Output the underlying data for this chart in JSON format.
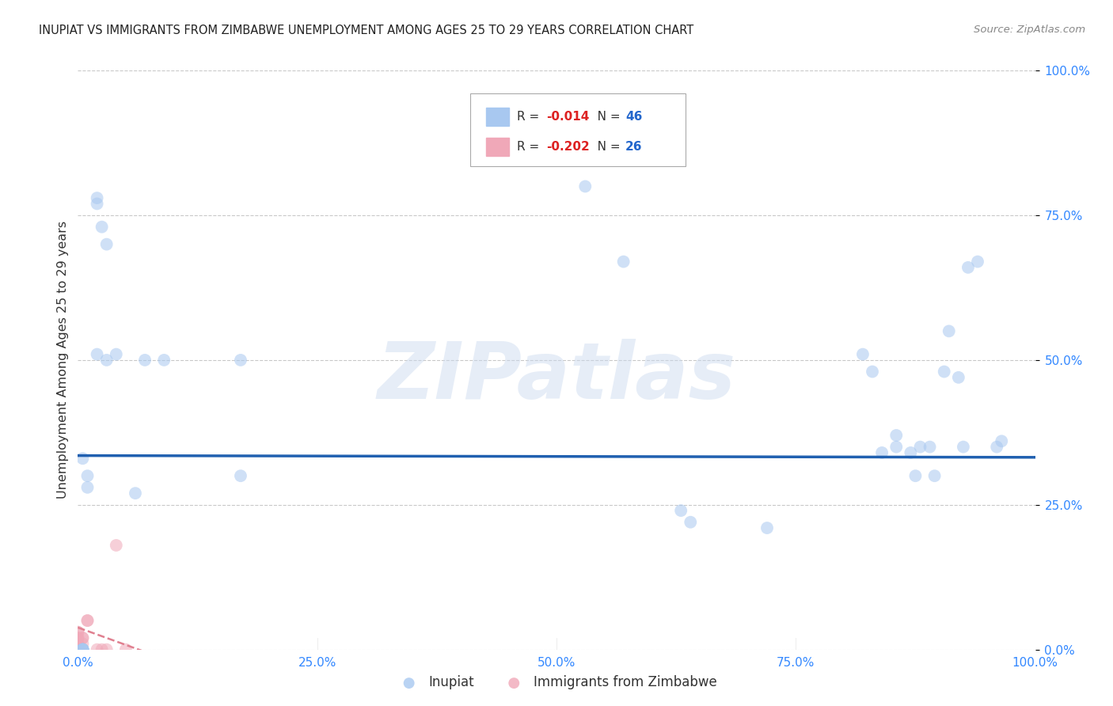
{
  "title": "INUPIAT VS IMMIGRANTS FROM ZIMBABWE UNEMPLOYMENT AMONG AGES 25 TO 29 YEARS CORRELATION CHART",
  "source": "Source: ZipAtlas.com",
  "ylabel": "Unemployment Among Ages 25 to 29 years",
  "xlim": [
    0,
    1
  ],
  "ylim": [
    0,
    1
  ],
  "xticks": [
    0.0,
    0.25,
    0.5,
    0.75,
    1.0
  ],
  "yticks": [
    0.0,
    0.25,
    0.5,
    0.75,
    1.0
  ],
  "xtick_labels": [
    "0.0%",
    "25.0%",
    "50.0%",
    "75.0%",
    "100.0%"
  ],
  "ytick_labels": [
    "0.0%",
    "25.0%",
    "50.0%",
    "75.0%",
    "100.0%"
  ],
  "inupiat_color": "#a8c8f0",
  "zimbabwe_color": "#f0a8b8",
  "trendline_inupiat_color": "#2060b0",
  "trendline_zimbabwe_color": "#e08090",
  "legend_R_color": "#dd2222",
  "legend_N_color": "#2266cc",
  "inupiat_R": "-0.014",
  "inupiat_N": "46",
  "zimbabwe_R": "-0.202",
  "zimbabwe_N": "26",
  "inupiat_x": [
    0.005,
    0.01,
    0.01,
    0.02,
    0.02,
    0.025,
    0.03,
    0.04,
    0.02,
    0.03,
    0.06,
    0.07,
    0.09,
    0.17,
    0.17,
    0.53,
    0.57,
    0.63,
    0.64,
    0.72,
    0.82,
    0.83,
    0.84,
    0.855,
    0.855,
    0.87,
    0.875,
    0.88,
    0.89,
    0.895,
    0.905,
    0.91,
    0.92,
    0.925,
    0.93,
    0.94,
    0.96,
    0.965,
    0.005,
    0.005,
    0.005,
    0.005,
    0.005,
    0.005,
    0.005,
    0.005
  ],
  "inupiat_y": [
    0.33,
    0.3,
    0.28,
    0.78,
    0.77,
    0.73,
    0.7,
    0.51,
    0.51,
    0.5,
    0.27,
    0.5,
    0.5,
    0.3,
    0.5,
    0.8,
    0.67,
    0.24,
    0.22,
    0.21,
    0.51,
    0.48,
    0.34,
    0.37,
    0.35,
    0.34,
    0.3,
    0.35,
    0.35,
    0.3,
    0.48,
    0.55,
    0.47,
    0.35,
    0.66,
    0.67,
    0.35,
    0.36,
    0.0,
    0.0,
    0.0,
    0.0,
    0.0,
    0.0,
    0.0,
    0.0
  ],
  "zimbabwe_x": [
    0.0,
    0.0,
    0.0,
    0.0,
    0.0,
    0.0,
    0.0,
    0.0,
    0.0,
    0.0,
    0.0,
    0.0,
    0.0,
    0.0,
    0.0,
    0.0,
    0.005,
    0.005,
    0.005,
    0.01,
    0.01,
    0.02,
    0.025,
    0.03,
    0.04,
    0.05
  ],
  "zimbabwe_y": [
    0.0,
    0.0,
    0.0,
    0.0,
    0.0,
    0.0,
    0.0,
    0.0,
    0.0,
    0.0,
    0.01,
    0.01,
    0.02,
    0.02,
    0.03,
    0.03,
    0.01,
    0.02,
    0.02,
    0.05,
    0.05,
    0.0,
    0.0,
    0.0,
    0.18,
    0.0
  ],
  "background_color": "#ffffff",
  "grid_color": "#bbbbbb",
  "marker_size": 130,
  "marker_alpha": 0.55,
  "watermark_text": "ZIPatlas",
  "watermark_fontsize": 72,
  "trendline_inupiat_intercept": 0.335,
  "trendline_inupiat_slope": -0.003,
  "trendline_zimbabwe_intercept": 0.038,
  "trendline_zimbabwe_slope": -0.6
}
